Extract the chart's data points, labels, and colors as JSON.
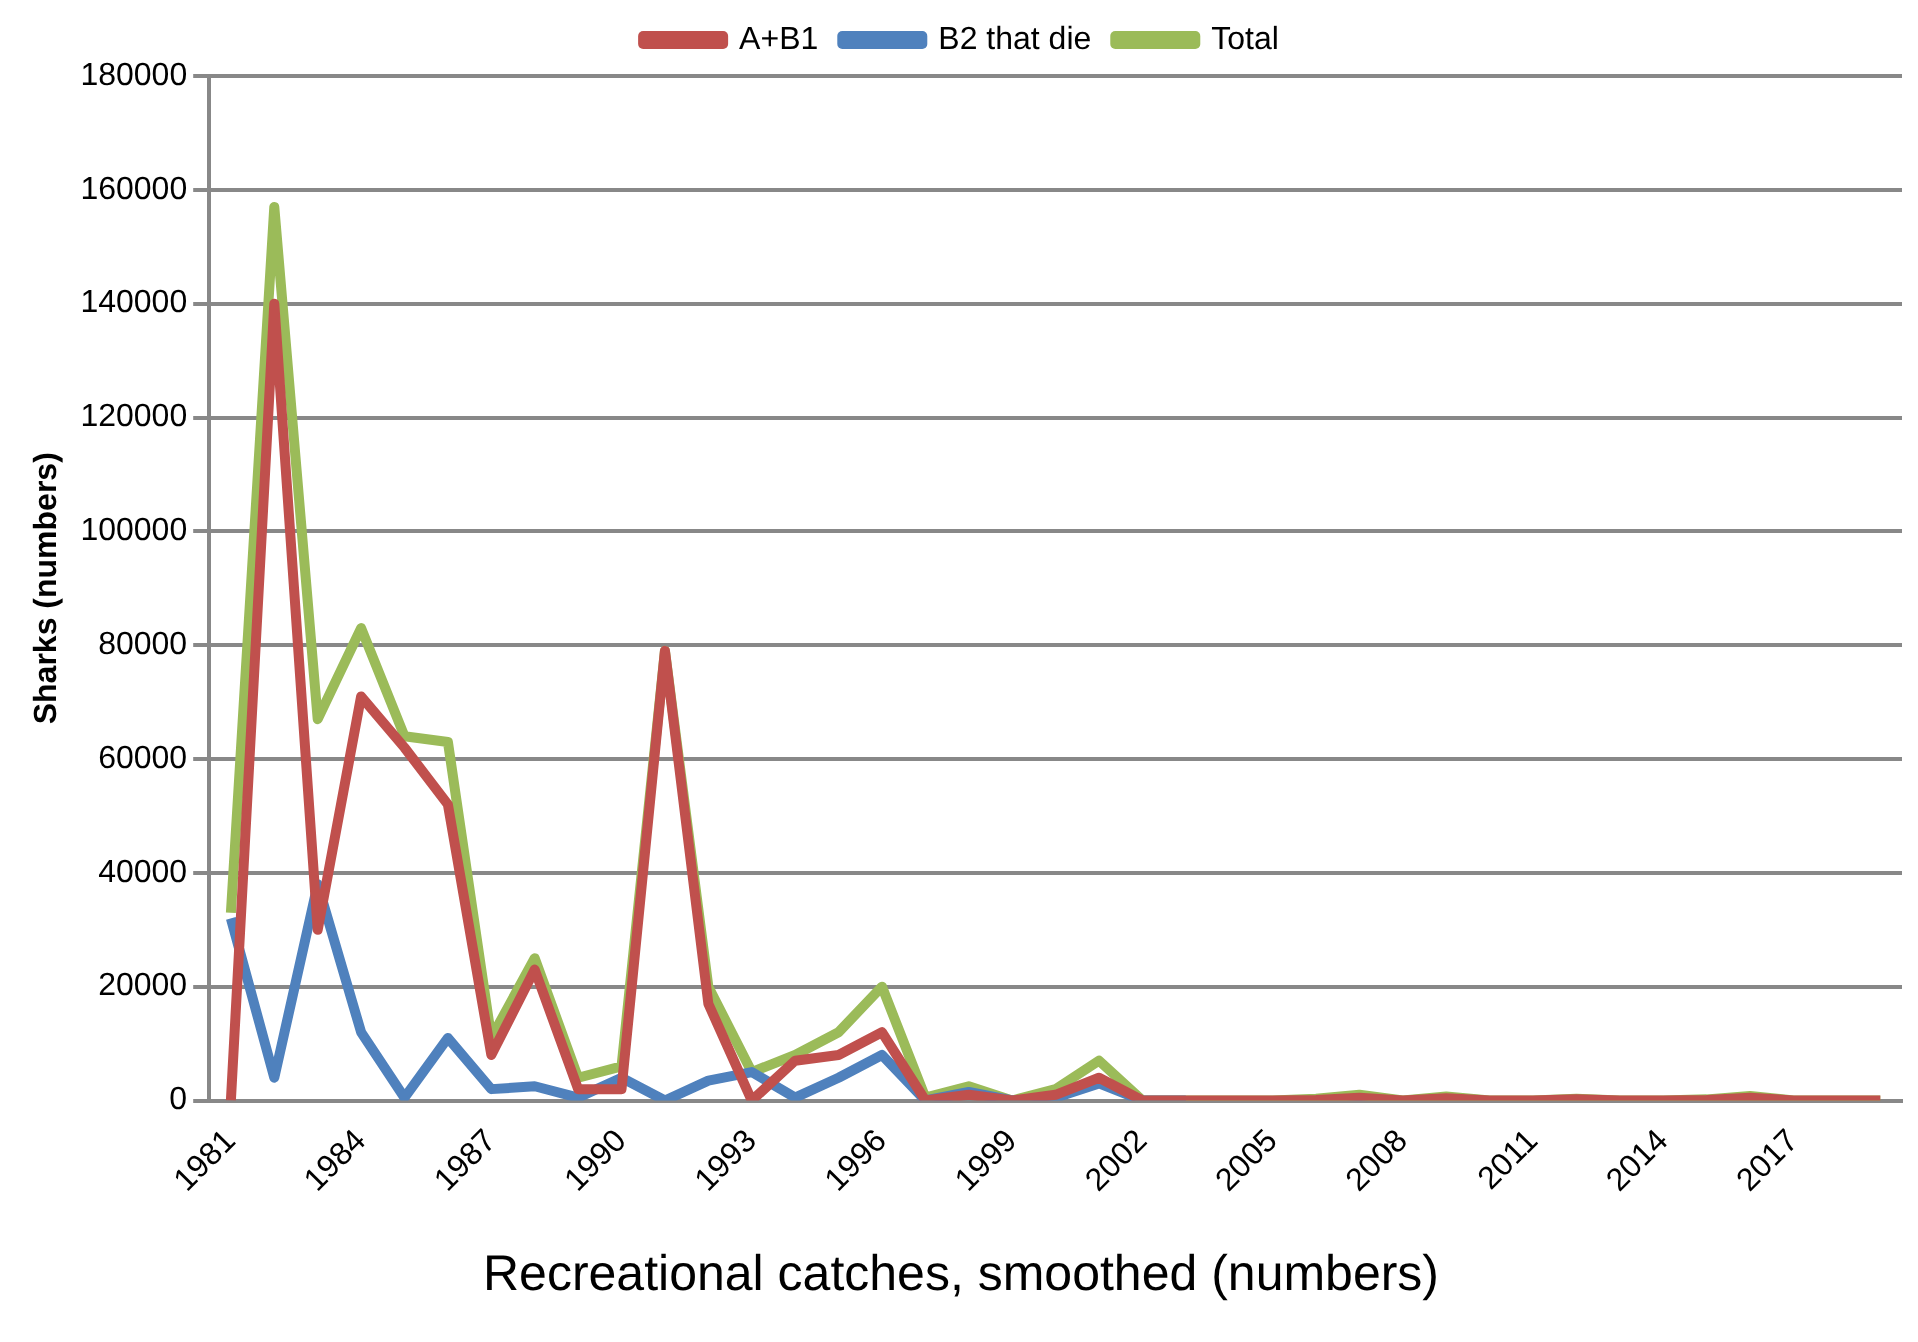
{
  "chart_data": {
    "type": "line",
    "title": "Recreational catches, smoothed (numbers)",
    "ylabel": "Sharks (numbers)",
    "categories": [
      "1981",
      null,
      null,
      "1984",
      null,
      null,
      "1987",
      null,
      null,
      "1990",
      null,
      null,
      "1993",
      null,
      null,
      "1996",
      null,
      null,
      "1999",
      null,
      null,
      "2002",
      null,
      null,
      "2005",
      null,
      null,
      "2008",
      null,
      null,
      "2011",
      null,
      null,
      "2014",
      null,
      null,
      "2017",
      null,
      null
    ],
    "series": [
      {
        "name": "A+B1",
        "color": "#c0504d",
        "values": [
          0,
          140000,
          30000,
          71000,
          62000,
          52000,
          8000,
          23000,
          2000,
          2000,
          79000,
          17000,
          0,
          7000,
          8000,
          12000,
          0,
          1000,
          0,
          1000,
          4000,
          0,
          0,
          0,
          0,
          100,
          500,
          0,
          400,
          0,
          0,
          200,
          0,
          0,
          100,
          500,
          0,
          0,
          0
        ]
      },
      {
        "name": "B2 that die",
        "color": "#4f81bd",
        "values": [
          32000,
          4000,
          38000,
          12000,
          500,
          11000,
          2000,
          2500,
          500,
          4000,
          0,
          3500,
          5000,
          500,
          4000,
          8000,
          0,
          1500,
          0,
          500,
          3000,
          0,
          0,
          null,
          null,
          null,
          null,
          null,
          null,
          null,
          null,
          null,
          null,
          null,
          null,
          null,
          null,
          null,
          null
        ]
      },
      {
        "name": "Total",
        "color": "#9bbb59",
        "values": [
          33000,
          157000,
          67000,
          83000,
          64000,
          63000,
          11000,
          25000,
          4000,
          6000,
          79000,
          20000,
          5000,
          8000,
          12000,
          20000,
          500,
          2500,
          0,
          2000,
          7000,
          0,
          0,
          0,
          0,
          300,
          1000,
          0,
          700,
          0,
          0,
          300,
          0,
          0,
          200,
          800,
          0,
          0,
          0
        ]
      }
    ],
    "ylim": [
      0,
      180000
    ],
    "yticks": [
      0,
      20000,
      40000,
      60000,
      80000,
      100000,
      120000,
      140000,
      160000,
      180000
    ],
    "grid": "y",
    "legend": "top",
    "marker": "none",
    "line_style": "solid"
  }
}
